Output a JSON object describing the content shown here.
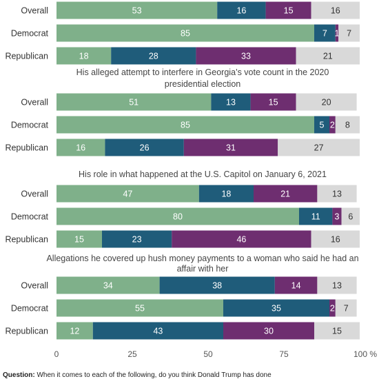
{
  "chart_data": {
    "type": "bar",
    "orientation": "horizontal",
    "stacked": true,
    "xlim": [
      0,
      100
    ],
    "xticks": [
      0,
      25,
      50,
      75,
      100
    ],
    "xtick_labels": [
      "0",
      "25",
      "50",
      "75",
      "100 %"
    ],
    "grid": false,
    "segment_colors": [
      "#7fb08a",
      "#1f5c7a",
      "#6e2e70",
      "#d9d9d9"
    ],
    "segment_text_colors": [
      "#ffffff",
      "#ffffff",
      "#ffffff",
      "#333333"
    ],
    "groups": [
      {
        "title": "",
        "rows": [
          {
            "label": "Overall",
            "values": [
              53,
              16,
              15,
              16
            ],
            "labels": [
              "53",
              "16",
              "15",
              "16"
            ]
          },
          {
            "label": "Democrat",
            "values": [
              85,
              7,
              1,
              7
            ],
            "labels": [
              "85",
              "7",
              "1",
              "7"
            ]
          },
          {
            "label": "Republican",
            "values": [
              18,
              28,
              33,
              21
            ],
            "labels": [
              "18",
              "28",
              "33",
              "21"
            ]
          }
        ]
      },
      {
        "title": "His alleged attempt to interfere in Georgia’s vote count in the 2020 presidential election",
        "rows": [
          {
            "label": "Overall",
            "values": [
              51,
              13,
              15,
              20
            ],
            "labels": [
              "51",
              "13",
              "15",
              "20"
            ]
          },
          {
            "label": "Democrat",
            "values": [
              85,
              5,
              2,
              8
            ],
            "labels": [
              "85",
              "5",
              "2",
              "8"
            ]
          },
          {
            "label": "Republican",
            "values": [
              16,
              26,
              31,
              27
            ],
            "labels": [
              "16",
              "26",
              "31",
              "27"
            ]
          }
        ]
      },
      {
        "title": "His role in what happened at the U.S. Capitol on January 6, 2021",
        "rows": [
          {
            "label": "Overall",
            "values": [
              47,
              18,
              21,
              13
            ],
            "labels": [
              "47",
              "18",
              "21",
              "13"
            ]
          },
          {
            "label": "Democrat",
            "values": [
              80,
              11,
              3,
              6
            ],
            "labels": [
              "80",
              "11",
              "3",
              "6"
            ]
          },
          {
            "label": "Republican",
            "values": [
              15,
              23,
              46,
              16
            ],
            "labels": [
              "15",
              "23",
              "46",
              "16"
            ]
          }
        ]
      },
      {
        "title": "Allegations he covered up hush money payments to a woman who said he had an affair with her",
        "rows": [
          {
            "label": "Overall",
            "values": [
              34,
              38,
              14,
              13
            ],
            "labels": [
              "34",
              "38",
              "14",
              "13"
            ]
          },
          {
            "label": "Democrat",
            "values": [
              55,
              35,
              2,
              7
            ],
            "labels": [
              "55",
              "35",
              "2",
              "7"
            ]
          },
          {
            "label": "Republican",
            "values": [
              12,
              43,
              30,
              15
            ],
            "labels": [
              "12",
              "43",
              "30",
              "15"
            ]
          }
        ]
      }
    ]
  },
  "footnote": {
    "label": "Question:",
    "text": "When it comes to each of the following, do you think Donald Trump has done"
  }
}
